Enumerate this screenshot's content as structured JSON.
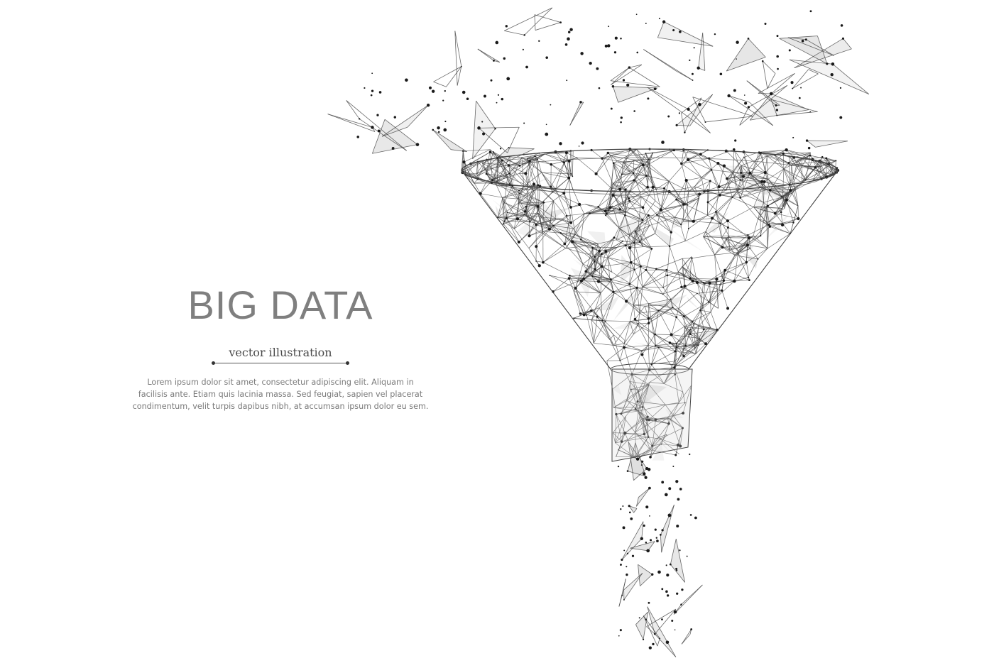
{
  "headline": {
    "title": "BIG DATA",
    "subtitle": "vector illustration",
    "body": "Lorem ipsum dolor sit amet, consectetur adipiscing elit. Aliquam in\nfacilisis ante. Etiam quis lacinia massa. Sed feugiat, sapien vel placerat\ncondimentum, velit turpis dapibus nibh, at accumsan ipsum dolor eu sem."
  },
  "illustration": {
    "subject": "funnel-icon",
    "style": "low-poly wireframe",
    "line_color": "#444444",
    "fill_color": "#d9d9d9",
    "node_color": "#1a1a1a"
  }
}
